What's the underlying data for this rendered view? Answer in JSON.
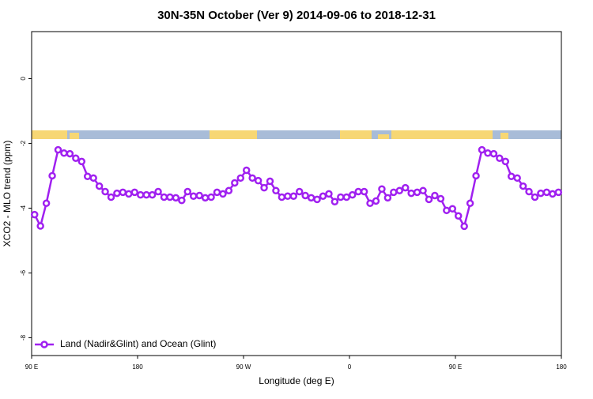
{
  "chart_data": {
    "type": "line",
    "title": "30N-35N October (Ver 9)   2014-09-06 to 2018-12-31",
    "x_label": "Longitude (deg E)",
    "y_label": "XCO2 - MLO trend (ppm)",
    "xlim": [
      90,
      540
    ],
    "ylim": [
      -8.55,
      1.45
    ],
    "xticks": [
      {
        "value": 90,
        "label": "90 E"
      },
      180,
      {
        "value": 270,
        "label": "90 W"
      },
      {
        "value": 360,
        "label": "0"
      },
      {
        "value": 450,
        "label": "90 E"
      },
      {
        "value": 540,
        "label": "180"
      }
    ],
    "yticks": [
      0,
      -2,
      -4,
      -6,
      -8
    ],
    "legend": "bottom-left",
    "x": [
      92.5,
      97.5,
      102.5,
      107.5,
      112.5,
      117.5,
      122.5,
      127.5,
      132.5,
      137.5,
      142.5,
      147.5,
      152.5,
      157.5,
      162.5,
      167.5,
      172.5,
      177.5,
      182.5,
      187.5,
      192.5,
      197.5,
      202.5,
      207.5,
      212.5,
      217.5,
      222.5,
      227.5,
      232.5,
      237.5,
      242.5,
      247.5,
      252.5,
      257.5,
      262.5,
      267.5,
      272.5,
      277.5,
      282.5,
      287.5,
      292.5,
      297.5,
      302.5,
      307.5,
      312.5,
      317.5,
      322.5,
      327.5,
      332.5,
      337.5,
      342.5,
      347.5,
      352.5,
      357.5,
      362.5,
      367.5,
      372.5,
      377.5,
      382.5,
      387.5,
      392.5,
      397.5,
      402.5,
      407.5,
      412.5,
      417.5,
      422.5,
      427.5,
      432.5,
      437.5,
      442.5,
      447.5,
      452.5,
      457.5,
      462.5,
      467.5,
      472.5,
      477.5,
      482.5,
      487.5,
      492.5,
      497.5,
      502.5,
      507.5,
      512.5,
      517.5,
      522.5,
      527.5,
      532.5,
      537.5
    ],
    "series": [
      {
        "name": "Land (Nadir&Glint) and Ocean (Glint)",
        "color": "#a020f0",
        "values": [
          -4.2,
          -4.55,
          -3.85,
          -3.0,
          -2.2,
          -2.3,
          -2.32,
          -2.46,
          -2.56,
          -3.02,
          -3.07,
          -3.32,
          -3.49,
          -3.66,
          -3.54,
          -3.51,
          -3.56,
          -3.51,
          -3.59,
          -3.59,
          -3.59,
          -3.49,
          -3.66,
          -3.66,
          -3.68,
          -3.76,
          -3.49,
          -3.63,
          -3.61,
          -3.68,
          -3.66,
          -3.51,
          -3.56,
          -3.46,
          -3.22,
          -3.07,
          -2.83,
          -3.07,
          -3.15,
          -3.37,
          -3.17,
          -3.46,
          -3.66,
          -3.63,
          -3.63,
          -3.49,
          -3.61,
          -3.68,
          -3.73,
          -3.63,
          -3.56,
          -3.8,
          -3.66,
          -3.66,
          -3.59,
          -3.49,
          -3.49,
          -3.85,
          -3.78,
          -3.41,
          -3.68,
          -3.51,
          -3.46,
          -3.37,
          -3.54,
          -3.51,
          -3.46,
          -3.73,
          -3.61,
          -3.71,
          -4.07,
          -4.02,
          -4.24,
          -4.56,
          -3.85,
          -3.0,
          -2.2,
          -2.3,
          -2.32,
          -2.46,
          -2.56,
          -3.02,
          -3.07,
          -3.32,
          -3.49,
          -3.66,
          -3.54,
          -3.51,
          -3.56,
          -3.51
        ]
      }
    ]
  }
}
